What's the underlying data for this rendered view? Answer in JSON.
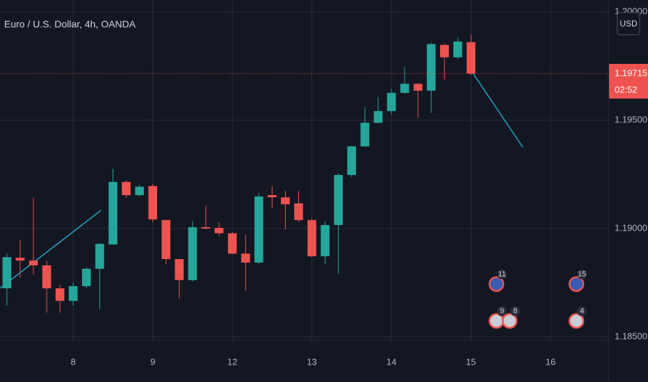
{
  "chart_data": {
    "type": "candlestick",
    "title": "Euro / U.S. Dollar, 4h, OANDA",
    "currency": "USD",
    "x": [
      0,
      1,
      2,
      3,
      4,
      5,
      6,
      7,
      8,
      9,
      10,
      11,
      12,
      13,
      14,
      15,
      16,
      17,
      18,
      19,
      20,
      21,
      22,
      23,
      24,
      25,
      26,
      27,
      28,
      29,
      30,
      31,
      32,
      33,
      34,
      35
    ],
    "open": [
      1.18724,
      1.18865,
      1.18852,
      1.1883,
      1.18724,
      1.18666,
      1.18734,
      1.18814,
      1.18926,
      1.19215,
      1.19154,
      1.19196,
      1.19039,
      1.18859,
      1.18762,
      1.19006,
      1.19003,
      1.18978,
      1.18884,
      1.18843,
      1.19154,
      1.19144,
      1.19116,
      1.19039,
      1.18872,
      1.19016,
      1.19247,
      1.19379,
      1.19488,
      1.19542,
      1.19626,
      1.19668,
      1.19636,
      1.19847,
      1.1979,
      1.1986
    ],
    "high": [
      1.18884,
      1.18949,
      1.19141,
      1.18852,
      1.1874,
      1.1875,
      1.1882,
      1.18933,
      1.19276,
      1.19221,
      1.19202,
      1.19205,
      1.19039,
      1.18859,
      1.19035,
      1.19106,
      1.19029,
      1.18984,
      1.18971,
      1.19164,
      1.19196,
      1.19173,
      1.19173,
      1.19045,
      1.19035,
      1.19254,
      1.19382,
      1.19559,
      1.19607,
      1.19645,
      1.19745,
      1.19671,
      1.19857,
      1.19854,
      1.1988,
      1.19896
    ],
    "low": [
      1.18644,
      1.18772,
      1.18788,
      1.18612,
      1.18612,
      1.18644,
      1.18724,
      1.18628,
      1.18926,
      1.19141,
      1.19148,
      1.19029,
      1.18836,
      1.18676,
      1.18756,
      1.18997,
      1.18965,
      1.18881,
      1.18714,
      1.18836,
      1.19093,
      1.18997,
      1.19029,
      1.18868,
      1.18836,
      1.18791,
      1.19238,
      1.19376,
      1.19485,
      1.19526,
      1.19623,
      1.1951,
      1.19533,
      1.19687,
      1.19783,
      1.19709
    ],
    "close": [
      1.18868,
      1.18852,
      1.1883,
      1.18724,
      1.18666,
      1.18734,
      1.18814,
      1.18929,
      1.19215,
      1.19154,
      1.19193,
      1.19042,
      1.18859,
      1.18762,
      1.19006,
      1.19,
      1.18978,
      1.18884,
      1.18843,
      1.19148,
      1.19144,
      1.19112,
      1.19039,
      1.18872,
      1.19016,
      1.19247,
      1.19379,
      1.19488,
      1.19542,
      1.19626,
      1.19668,
      1.19636,
      1.19851,
      1.1979,
      1.19863,
      1.19715
    ],
    "up_color": "#26a69a",
    "down_color": "#ef5350",
    "xlim": [
      -0.52,
      45.36
    ],
    "xticks": [
      {
        "value": 5,
        "label": "8"
      },
      {
        "value": 11,
        "label": "9"
      },
      {
        "value": 17,
        "label": "12"
      },
      {
        "value": 23,
        "label": "13"
      },
      {
        "value": 29,
        "label": "14"
      },
      {
        "value": 35,
        "label": "15"
      },
      {
        "value": 41,
        "label": "16"
      }
    ],
    "ylim": [
      1.18484,
      1.200545
    ],
    "yticks": [
      {
        "value": 1.185,
        "label": "1.18500"
      },
      {
        "value": 1.19,
        "label": "1.19000"
      },
      {
        "value": 1.195,
        "label": "1.19500"
      },
      {
        "value": 1.2,
        "label": "1.20000"
      }
    ],
    "current_price": {
      "value": 1.19715,
      "label": "1.19715"
    },
    "countdown": "02:52",
    "grid": true,
    "events": [
      "11",
      "15",
      "9",
      "8",
      "4"
    ]
  }
}
